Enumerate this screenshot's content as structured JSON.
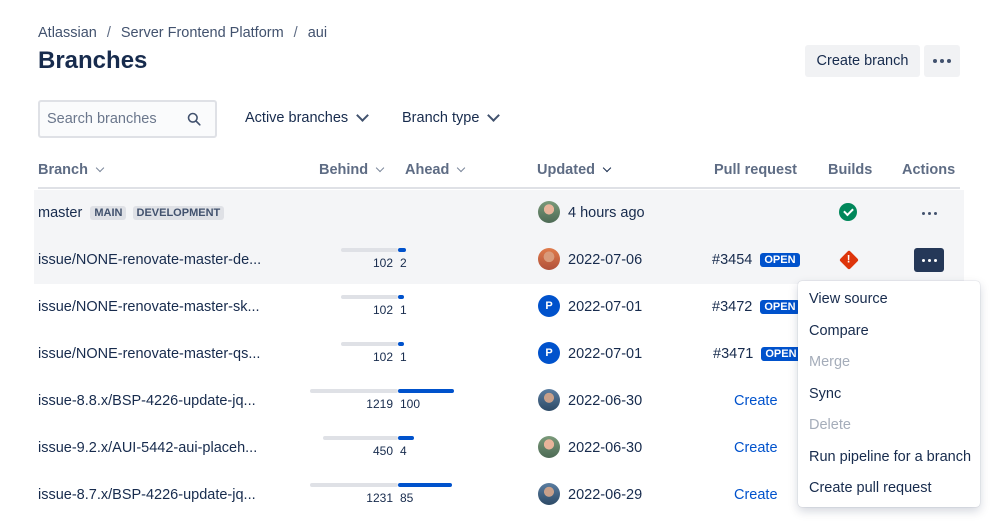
{
  "breadcrumb": [
    "Atlassian",
    "Server Frontend Platform",
    "aui"
  ],
  "page_title": "Branches",
  "header_actions": {
    "create_branch": "Create branch"
  },
  "search": {
    "placeholder": "Search branches",
    "value": ""
  },
  "filters": {
    "active": "Active branches",
    "type": "Branch type"
  },
  "columns": {
    "branch": "Branch",
    "behind": "Behind",
    "ahead": "Ahead",
    "updated": "Updated",
    "pull_request": "Pull request",
    "builds": "Builds",
    "actions": "Actions"
  },
  "rows": [
    {
      "branch": "master",
      "badges": [
        "MAIN",
        "DEVELOPMENT"
      ],
      "behind": null,
      "ahead": null,
      "avatar": "photo",
      "avatar_letter": "",
      "updated": "4 hours ago",
      "pr": null,
      "pr_state": null,
      "create_label": null,
      "build": "success"
    },
    {
      "branch": "issue/NONE-renovate-master-de...",
      "badges": [],
      "behind": "102",
      "ahead": "2",
      "avatar": "photo",
      "avatar_letter": "",
      "updated": "2022-07-06",
      "pr": "#3454",
      "pr_state": "OPEN",
      "create_label": null,
      "build": "failed"
    },
    {
      "branch": "issue/NONE-renovate-master-sk...",
      "badges": [],
      "behind": "102",
      "ahead": "1",
      "avatar": "letter",
      "avatar_letter": "P",
      "updated": "2022-07-01",
      "pr": "#3472",
      "pr_state": "OPEN",
      "create_label": null,
      "build": null
    },
    {
      "branch": "issue/NONE-renovate-master-qs...",
      "badges": [],
      "behind": "102",
      "ahead": "1",
      "avatar": "letter",
      "avatar_letter": "P",
      "updated": "2022-07-01",
      "pr": "#3471",
      "pr_state": "OPEN",
      "create_label": null,
      "build": null
    },
    {
      "branch": "issue-8.8.x/BSP-4226-update-jq...",
      "badges": [],
      "behind": "1219",
      "ahead": "100",
      "avatar": "photo",
      "avatar_letter": "",
      "updated": "2022-06-30",
      "pr": null,
      "pr_state": null,
      "create_label": "Create",
      "build": null
    },
    {
      "branch": "issue-9.2.x/AUI-5442-aui-placeh...",
      "badges": [],
      "behind": "450",
      "ahead": "4",
      "avatar": "photo",
      "avatar_letter": "",
      "updated": "2022-06-30",
      "pr": null,
      "pr_state": null,
      "create_label": "Create",
      "build": null
    },
    {
      "branch": "issue-8.7.x/BSP-4226-update-jq...",
      "badges": [],
      "behind": "1231",
      "ahead": "85",
      "avatar": "photo",
      "avatar_letter": "",
      "updated": "2022-06-29",
      "pr": null,
      "pr_state": null,
      "create_label": "Create",
      "build": null
    }
  ],
  "menu": {
    "view_source": "View source",
    "compare": "Compare",
    "merge": "Merge",
    "sync": "Sync",
    "delete": "Delete",
    "run_pipeline": "Run pipeline for a branch",
    "create_pr": "Create pull request"
  },
  "colors": {
    "primary": "#0052cc",
    "success": "#00875a",
    "danger": "#de350b",
    "active_action": "#253858"
  }
}
